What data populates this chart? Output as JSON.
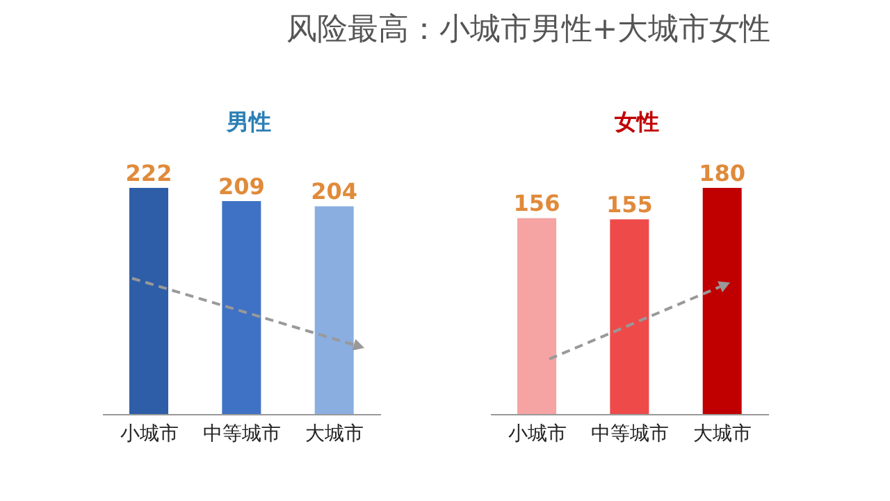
{
  "chart_data": [
    {
      "type": "bar",
      "title": "风险最高：小城市男性+大城市女性",
      "subtitle": "男性",
      "categories": [
        "小城市",
        "中等城市",
        "大城市"
      ],
      "values": [
        222,
        209,
        204
      ],
      "colors": [
        "#2e5ea8",
        "#3f72c4",
        "#8aaee0"
      ],
      "data_labels": true,
      "tick_labels": "x"
    },
    {
      "type": "bar",
      "subtitle": "女性",
      "categories": [
        "小城市",
        "中等城市",
        "大城市"
      ],
      "values": [
        156,
        155,
        180
      ],
      "colors": [
        "#f5a3a3",
        "#ee4a4a",
        "#c00000"
      ],
      "data_labels": true,
      "tick_labels": "x"
    }
  ]
}
